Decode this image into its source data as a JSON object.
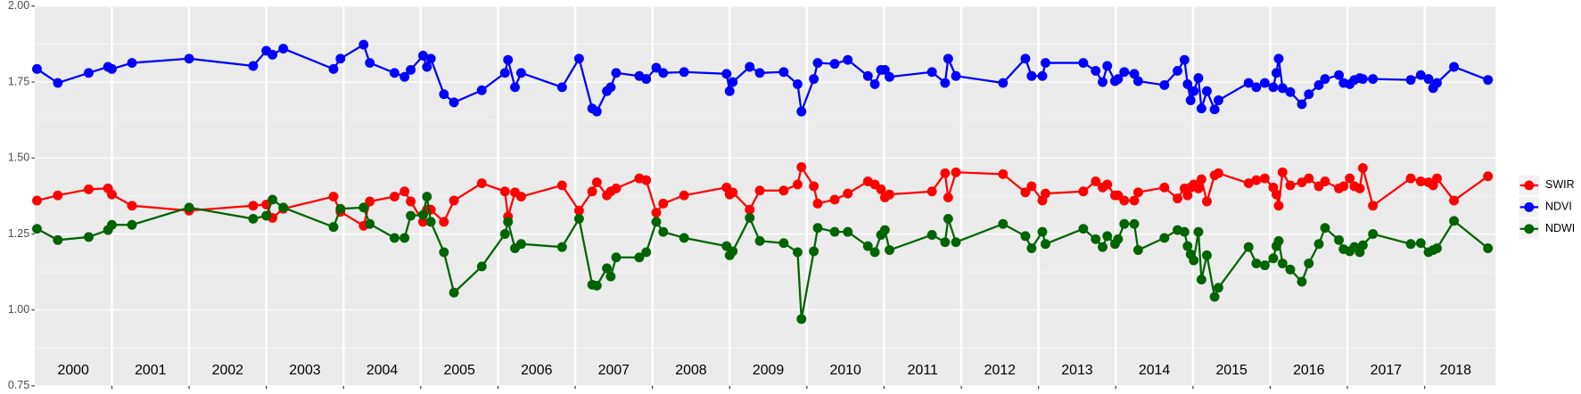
{
  "chart_data": {
    "type": "line",
    "x": [
      2000.03,
      2000.3,
      2000.7,
      2000.95,
      2001.0,
      2001.26,
      2002.0,
      2002.83,
      2003.0,
      2003.08,
      2003.22,
      2003.87,
      2003.96,
      2004.26,
      2004.34,
      2004.66,
      2004.79,
      2004.87,
      2005.03,
      2005.08,
      2005.13,
      2005.3,
      2005.43,
      2005.79,
      2006.09,
      2006.13,
      2006.22,
      2006.3,
      2006.83,
      2007.05,
      2007.22,
      2007.28,
      2007.41,
      2007.46,
      2007.53,
      2007.83,
      2007.92,
      2008.05,
      2008.14,
      2008.41,
      2008.96,
      2009.0,
      2009.04,
      2009.26,
      2009.39,
      2009.7,
      2009.88,
      2009.93,
      2010.09,
      2010.14,
      2010.36,
      2010.53,
      2010.79,
      2010.88,
      2010.96,
      2011.01,
      2011.07,
      2011.62,
      2011.79,
      2011.83,
      2011.93,
      2012.54,
      2012.83,
      2012.91,
      2013.05,
      2013.09,
      2013.58,
      2013.74,
      2013.83,
      2013.89,
      2013.99,
      2014.03,
      2014.11,
      2014.24,
      2014.29,
      2014.63,
      2014.8,
      2014.89,
      2014.93,
      2014.97,
      2015.01,
      2015.07,
      2015.11,
      2015.18,
      2015.28,
      2015.33,
      2015.72,
      2015.82,
      2015.93,
      2016.04,
      2016.08,
      2016.11,
      2016.16,
      2016.26,
      2016.41,
      2016.5,
      2016.63,
      2016.71,
      2016.89,
      2016.95,
      2017.03,
      2017.09,
      2017.16,
      2017.2,
      2017.33,
      2017.82,
      2017.95,
      2018.05,
      2018.11,
      2018.16,
      2018.38,
      2018.82
    ],
    "series": [
      {
        "name": "SWIR",
        "color": "#ff0000",
        "values": [
          1.36,
          1.377,
          1.397,
          1.4,
          1.38,
          1.343,
          1.327,
          1.343,
          1.347,
          1.303,
          1.333,
          1.373,
          1.323,
          1.277,
          1.357,
          1.373,
          1.39,
          1.357,
          1.29,
          1.33,
          1.33,
          1.29,
          1.36,
          1.417,
          1.39,
          1.307,
          1.387,
          1.373,
          1.41,
          1.327,
          1.39,
          1.42,
          1.377,
          1.39,
          1.4,
          1.433,
          1.427,
          1.32,
          1.35,
          1.377,
          1.403,
          1.38,
          1.387,
          1.33,
          1.393,
          1.393,
          1.413,
          1.47,
          1.407,
          1.35,
          1.363,
          1.383,
          1.423,
          1.413,
          1.397,
          1.37,
          1.38,
          1.39,
          1.45,
          1.37,
          1.453,
          1.447,
          1.387,
          1.407,
          1.36,
          1.383,
          1.39,
          1.423,
          1.403,
          1.413,
          1.377,
          1.377,
          1.36,
          1.36,
          1.387,
          1.403,
          1.367,
          1.4,
          1.377,
          1.403,
          1.413,
          1.4,
          1.43,
          1.357,
          1.443,
          1.45,
          1.417,
          1.427,
          1.433,
          1.403,
          1.38,
          1.343,
          1.453,
          1.41,
          1.42,
          1.433,
          1.407,
          1.423,
          1.4,
          1.407,
          1.433,
          1.407,
          1.4,
          1.467,
          1.343,
          1.433,
          1.423,
          1.42,
          1.41,
          1.433,
          1.36,
          1.44
        ]
      },
      {
        "name": "NDVI",
        "color": "#0000ff",
        "values": [
          1.793,
          1.747,
          1.78,
          1.8,
          1.793,
          1.813,
          1.827,
          1.803,
          1.853,
          1.84,
          1.86,
          1.793,
          1.827,
          1.873,
          1.813,
          1.78,
          1.767,
          1.79,
          1.837,
          1.8,
          1.827,
          1.71,
          1.683,
          1.723,
          1.78,
          1.823,
          1.733,
          1.78,
          1.733,
          1.827,
          1.663,
          1.653,
          1.72,
          1.733,
          1.78,
          1.77,
          1.76,
          1.797,
          1.78,
          1.783,
          1.777,
          1.72,
          1.75,
          1.8,
          1.78,
          1.783,
          1.743,
          1.653,
          1.76,
          1.813,
          1.81,
          1.823,
          1.77,
          1.743,
          1.79,
          1.79,
          1.767,
          1.783,
          1.747,
          1.827,
          1.77,
          1.747,
          1.827,
          1.77,
          1.77,
          1.813,
          1.813,
          1.787,
          1.75,
          1.803,
          1.753,
          1.76,
          1.783,
          1.777,
          1.753,
          1.74,
          1.787,
          1.823,
          1.743,
          1.69,
          1.72,
          1.763,
          1.663,
          1.72,
          1.66,
          1.69,
          1.747,
          1.733,
          1.747,
          1.733,
          1.78,
          1.827,
          1.73,
          1.717,
          1.677,
          1.71,
          1.74,
          1.76,
          1.773,
          1.747,
          1.743,
          1.757,
          1.763,
          1.76,
          1.76,
          1.757,
          1.773,
          1.76,
          1.73,
          1.747,
          1.8,
          1.757
        ]
      },
      {
        "name": "NDWI",
        "color": "#006400",
        "values": [
          1.267,
          1.23,
          1.24,
          1.263,
          1.28,
          1.28,
          1.337,
          1.3,
          1.31,
          1.363,
          1.337,
          1.273,
          1.333,
          1.337,
          1.283,
          1.237,
          1.237,
          1.31,
          1.313,
          1.373,
          1.29,
          1.19,
          1.057,
          1.143,
          1.25,
          1.29,
          1.203,
          1.217,
          1.207,
          1.3,
          1.083,
          1.08,
          1.137,
          1.11,
          1.173,
          1.173,
          1.19,
          1.29,
          1.257,
          1.237,
          1.21,
          1.18,
          1.193,
          1.303,
          1.227,
          1.22,
          1.19,
          0.97,
          1.193,
          1.27,
          1.257,
          1.257,
          1.21,
          1.19,
          1.247,
          1.263,
          1.197,
          1.247,
          1.223,
          1.3,
          1.223,
          1.283,
          1.243,
          1.203,
          1.257,
          1.217,
          1.267,
          1.233,
          1.207,
          1.243,
          1.217,
          1.233,
          1.283,
          1.283,
          1.197,
          1.237,
          1.263,
          1.257,
          1.21,
          1.183,
          1.163,
          1.257,
          1.1,
          1.18,
          1.043,
          1.073,
          1.207,
          1.153,
          1.147,
          1.17,
          1.21,
          1.227,
          1.153,
          1.133,
          1.093,
          1.153,
          1.217,
          1.27,
          1.23,
          1.2,
          1.193,
          1.207,
          1.19,
          1.213,
          1.25,
          1.217,
          1.22,
          1.19,
          1.197,
          1.203,
          1.293,
          1.203
        ]
      }
    ],
    "xlim": [
      2000,
      2018.92
    ],
    "xticks": [
      2001,
      2002,
      2003,
      2004,
      2005,
      2006,
      2007,
      2008,
      2009,
      2010,
      2011,
      2012,
      2013,
      2014,
      2015,
      2016,
      2017,
      2018
    ],
    "year_labels": [
      {
        "value": 2000.5,
        "label": "2000"
      },
      {
        "value": 2001.5,
        "label": "2001"
      },
      {
        "value": 2002.5,
        "label": "2002"
      },
      {
        "value": 2003.5,
        "label": "2003"
      },
      {
        "value": 2004.5,
        "label": "2004"
      },
      {
        "value": 2005.5,
        "label": "2005"
      },
      {
        "value": 2006.5,
        "label": "2006"
      },
      {
        "value": 2007.5,
        "label": "2007"
      },
      {
        "value": 2008.5,
        "label": "2008"
      },
      {
        "value": 2009.5,
        "label": "2009"
      },
      {
        "value": 2010.5,
        "label": "2010"
      },
      {
        "value": 2011.5,
        "label": "2011"
      },
      {
        "value": 2012.5,
        "label": "2012"
      },
      {
        "value": 2013.5,
        "label": "2013"
      },
      {
        "value": 2014.5,
        "label": "2014"
      },
      {
        "value": 2015.5,
        "label": "2015"
      },
      {
        "value": 2016.5,
        "label": "2016"
      },
      {
        "value": 2017.5,
        "label": "2017"
      },
      {
        "value": 2018.4,
        "label": "2018"
      }
    ],
    "ylim": [
      0.75,
      2.0
    ],
    "yticks": [
      {
        "value": 0.75,
        "label": "0.75"
      },
      {
        "value": 1.0,
        "label": "1.00"
      },
      {
        "value": 1.25,
        "label": "1.25"
      },
      {
        "value": 1.5,
        "label": "1.50"
      },
      {
        "value": 1.75,
        "label": "1.75"
      },
      {
        "value": 2.0,
        "label": "2.00"
      }
    ],
    "grid": true,
    "legend": "right"
  }
}
